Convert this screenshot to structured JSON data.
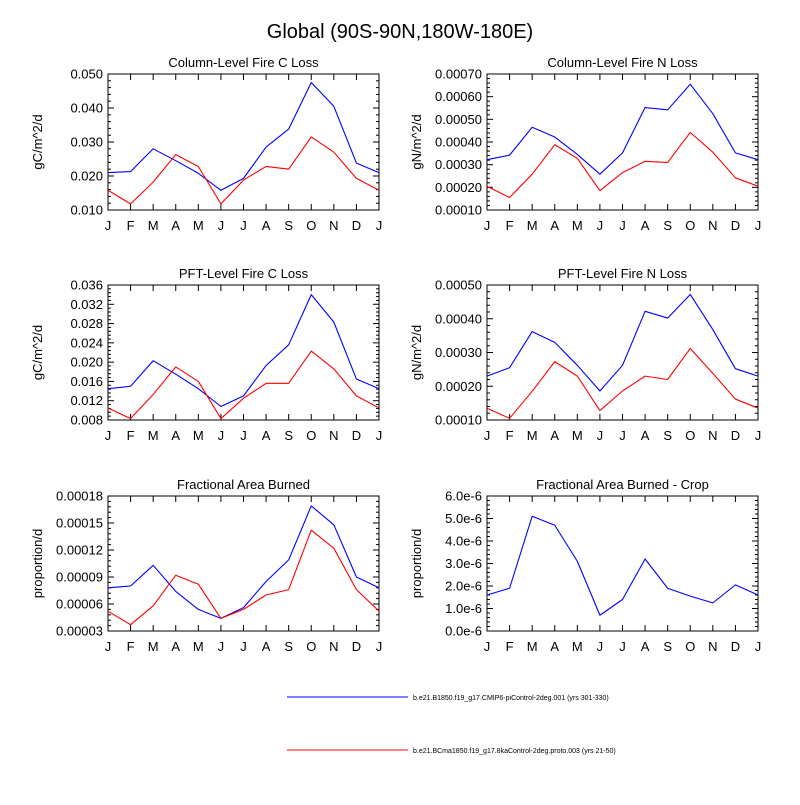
{
  "page_title": "Global (90S-90N,180W-180E)",
  "legend": [
    {
      "name": "b.e21.B1850.f19_g17.CMIP6-piControl-2deg.001 (yrs 301-330)",
      "color": "#0000ff"
    },
    {
      "name": "b.e21.BCma1850.f19_g17.8kaControl-2deg.proto.003 (yrs 21-50)",
      "color": "#ff0000"
    }
  ],
  "chart_data": [
    {
      "type": "line",
      "title": "Column-Level Fire C Loss",
      "xlabel": "",
      "ylabel": "gC/m^2/d",
      "categories": [
        "J",
        "F",
        "M",
        "A",
        "M",
        "J",
        "J",
        "A",
        "S",
        "O",
        "N",
        "D",
        "J"
      ],
      "ylim": [
        0.01,
        0.05
      ],
      "yticks": [
        "0.010",
        "0.020",
        "0.030",
        "0.040",
        "0.050"
      ],
      "grid": false,
      "series": [
        {
          "name": "b.e21.B1850.f19_g17.CMIP6-piControl-2deg.001 (yrs 301-330)",
          "color": "#0000ff",
          "values": [
            0.021,
            0.0213,
            0.028,
            0.0245,
            0.0208,
            0.0158,
            0.0193,
            0.0285,
            0.0338,
            0.0475,
            0.0405,
            0.0238,
            0.021
          ]
        },
        {
          "name": "b.e21.BCma1850.f19_g17.8kaControl-2deg.proto.003 (yrs 21-50)",
          "color": "#ff0000",
          "values": [
            0.0158,
            0.0118,
            0.0182,
            0.0263,
            0.0228,
            0.0118,
            0.0188,
            0.0228,
            0.022,
            0.0315,
            0.027,
            0.0193,
            0.0158
          ]
        }
      ]
    },
    {
      "type": "line",
      "title": "Column-Level Fire N Loss",
      "xlabel": "",
      "ylabel": "gN/m^2/d",
      "categories": [
        "J",
        "F",
        "M",
        "A",
        "M",
        "J",
        "J",
        "A",
        "S",
        "O",
        "N",
        "D",
        "J"
      ],
      "ylim": [
        0.0001,
        0.0007
      ],
      "yticks": [
        "0.00010",
        "0.00020",
        "0.00030",
        "0.00040",
        "0.00050",
        "0.00060",
        "0.00070"
      ],
      "grid": false,
      "series": [
        {
          "name": "b.e21.B1850.f19_g17.CMIP6-piControl-2deg.001 (yrs 301-330)",
          "color": "#0000ff",
          "values": [
            0.000322,
            0.000342,
            0.000465,
            0.000422,
            0.000345,
            0.000258,
            0.000352,
            0.000552,
            0.000542,
            0.000655,
            0.000525,
            0.000352,
            0.000322
          ]
        },
        {
          "name": "b.e21.BCma1850.f19_g17.8kaControl-2deg.proto.003 (yrs 21-50)",
          "color": "#ff0000",
          "values": [
            0.000205,
            0.000155,
            0.000258,
            0.000388,
            0.000328,
            0.000185,
            0.000265,
            0.000315,
            0.00031,
            0.000442,
            0.000355,
            0.000242,
            0.000205
          ]
        }
      ]
    },
    {
      "type": "line",
      "title": "PFT-Level Fire C Loss",
      "xlabel": "",
      "ylabel": "gC/m^2/d",
      "categories": [
        "J",
        "F",
        "M",
        "A",
        "M",
        "J",
        "J",
        "A",
        "S",
        "O",
        "N",
        "D",
        "J"
      ],
      "ylim": [
        0.008,
        0.036
      ],
      "yticks": [
        "0.008",
        "0.012",
        "0.016",
        "0.020",
        "0.024",
        "0.028",
        "0.032",
        "0.036"
      ],
      "grid": false,
      "series": [
        {
          "name": "b.e21.B1850.f19_g17.CMIP6-piControl-2deg.001 (yrs 301-330)",
          "color": "#0000ff",
          "values": [
            0.0145,
            0.015,
            0.0203,
            0.0175,
            0.0145,
            0.0108,
            0.013,
            0.0193,
            0.0236,
            0.034,
            0.0283,
            0.0165,
            0.0145
          ]
        },
        {
          "name": "b.e21.BCma1850.f19_g17.8kaControl-2deg.proto.003 (yrs 21-50)",
          "color": "#ff0000",
          "values": [
            0.0105,
            0.0083,
            0.0133,
            0.019,
            0.016,
            0.0083,
            0.0125,
            0.0156,
            0.0156,
            0.0223,
            0.0186,
            0.013,
            0.0105
          ]
        }
      ]
    },
    {
      "type": "line",
      "title": "PFT-Level Fire N Loss",
      "xlabel": "",
      "ylabel": "gN/m^2/d",
      "categories": [
        "J",
        "F",
        "M",
        "A",
        "M",
        "J",
        "J",
        "A",
        "S",
        "O",
        "N",
        "D",
        "J"
      ],
      "ylim": [
        0.0001,
        0.0005
      ],
      "yticks": [
        "0.00010",
        "0.00020",
        "0.00030",
        "0.00040",
        "0.00050"
      ],
      "grid": false,
      "series": [
        {
          "name": "b.e21.B1850.f19_g17.CMIP6-piControl-2deg.001 (yrs 301-330)",
          "color": "#0000ff",
          "values": [
            0.00023,
            0.000255,
            0.000362,
            0.00033,
            0.000262,
            0.000186,
            0.000262,
            0.000422,
            0.000402,
            0.000472,
            0.000368,
            0.000252,
            0.00023
          ]
        },
        {
          "name": "b.e21.BCma1850.f19_g17.8kaControl-2deg.proto.003 (yrs 21-50)",
          "color": "#ff0000",
          "values": [
            0.000135,
            0.000105,
            0.000185,
            0.000273,
            0.00023,
            0.000128,
            0.000186,
            0.00023,
            0.00022,
            0.000312,
            0.000238,
            0.000162,
            0.000135
          ]
        }
      ]
    },
    {
      "type": "line",
      "title": "Fractional Area Burned",
      "xlabel": "",
      "ylabel": "proportion/d",
      "categories": [
        "J",
        "F",
        "M",
        "A",
        "M",
        "J",
        "J",
        "A",
        "S",
        "O",
        "N",
        "D",
        "J"
      ],
      "ylim": [
        3e-05,
        0.00018
      ],
      "yticks": [
        "0.00003",
        "0.00006",
        "0.00009",
        "0.00012",
        "0.00015",
        "0.00018"
      ],
      "grid": false,
      "series": [
        {
          "name": "b.e21.B1850.f19_g17.CMIP6-piControl-2deg.001 (yrs 301-330)",
          "color": "#0000ff",
          "values": [
            7.8e-05,
            8e-05,
            0.000103,
            7.4e-05,
            5.4e-05,
            4.4e-05,
            5.6e-05,
            8.5e-05,
            0.000109,
            0.000169,
            0.000148,
            9e-05,
            7.8e-05
          ]
        },
        {
          "name": "b.e21.BCma1850.f19_g17.8kaControl-2deg.proto.003 (yrs 21-50)",
          "color": "#ff0000",
          "values": [
            5.2e-05,
            3.7e-05,
            5.8e-05,
            9.2e-05,
            8.2e-05,
            4.4e-05,
            5.4e-05,
            7e-05,
            7.6e-05,
            0.000142,
            0.000122,
            7.6e-05,
            5.2e-05
          ]
        }
      ]
    },
    {
      "type": "line",
      "title": "Fractional Area Burned - Crop",
      "xlabel": "",
      "ylabel": "proportion/d",
      "categories": [
        "J",
        "F",
        "M",
        "A",
        "M",
        "J",
        "J",
        "A",
        "S",
        "O",
        "N",
        "D",
        "J"
      ],
      "ylim": [
        0.0,
        6e-06
      ],
      "yticks": [
        "0.0e-6",
        "1.0e-6",
        "2.0e-6",
        "3.0e-6",
        "4.0e-6",
        "5.0e-6",
        "6.0e-6"
      ],
      "grid": false,
      "series": [
        {
          "name": "b.e21.B1850.f19_g17.CMIP6-piControl-2deg.001 (yrs 301-330)",
          "color": "#0000ff",
          "values": [
            1.6e-06,
            1.9e-06,
            5.1e-06,
            4.7e-06,
            3.1e-06,
            7e-07,
            1.4e-06,
            3.2e-06,
            1.9e-06,
            1.55e-06,
            1.25e-06,
            2.05e-06,
            1.6e-06
          ]
        }
      ]
    }
  ]
}
